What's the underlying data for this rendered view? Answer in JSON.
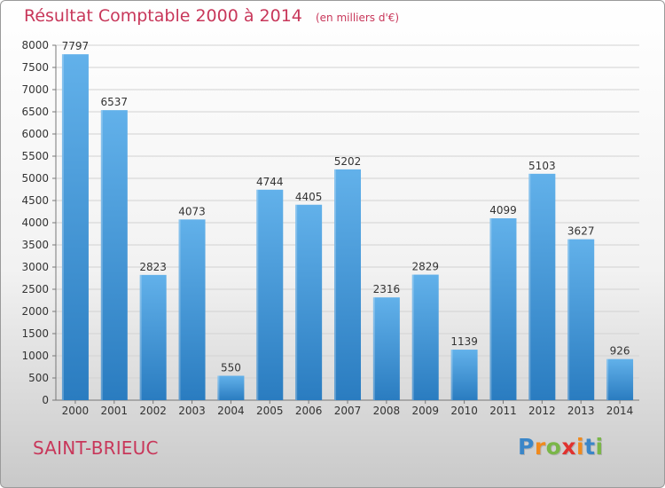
{
  "header": {
    "title": "Résultat Comptable 2000 à 2014",
    "subtitle": "(en milliers d'€)"
  },
  "footer": {
    "city": "SAINT-BRIEUC",
    "logo_text": "Proxiti"
  },
  "colors": {
    "title": "#c8375a",
    "bar_top": "#62b1ea",
    "bar_bottom": "#2a7cc0",
    "logo_letters": [
      "#3a86c8",
      "#f08a1d",
      "#7ab648",
      "#e0322f",
      "#f08a1d",
      "#3a86c8",
      "#7ab648"
    ]
  },
  "chart_data": {
    "type": "bar",
    "categories": [
      "2000",
      "2001",
      "2002",
      "2003",
      "2004",
      "2005",
      "2006",
      "2007",
      "2008",
      "2009",
      "2010",
      "2011",
      "2012",
      "2013",
      "2014"
    ],
    "values": [
      7797,
      6537,
      2823,
      4073,
      550,
      4744,
      4405,
      5202,
      2316,
      2829,
      1139,
      4099,
      5103,
      3627,
      926
    ],
    "ylim": [
      0,
      8000
    ],
    "yticks": [
      0,
      500,
      1000,
      1500,
      2000,
      2500,
      3000,
      3500,
      4000,
      4500,
      5000,
      5500,
      6000,
      6500,
      7000,
      7500,
      8000
    ],
    "grid": true,
    "data_labels": true
  }
}
